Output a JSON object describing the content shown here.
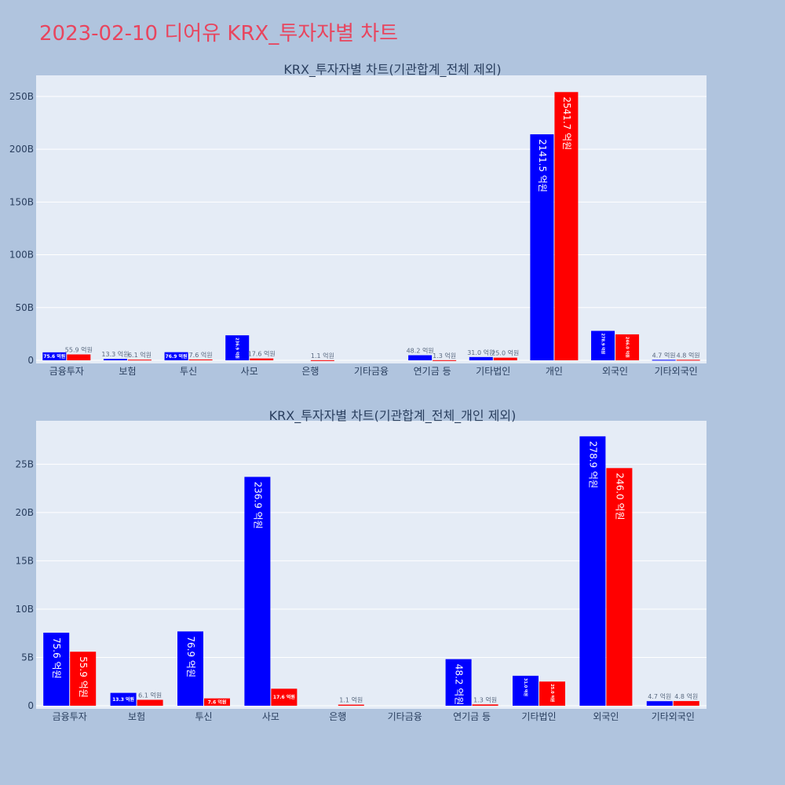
{
  "page": {
    "title": "2023-02-10 디어유 KRX_투자자별 차트"
  },
  "colors": {
    "background": "#b0c4de",
    "plot_background": "#e5ecf6",
    "grid": "#ffffff",
    "series_buy": "#0000ff",
    "series_sell": "#ff0000",
    "title": "#e8455e",
    "text": "#2a3f5f",
    "label_outside": "#5a6a80"
  },
  "chart_data": [
    {
      "type": "bar",
      "title": "KRX_투자자별 차트(기관합계_전체 제외)",
      "categories": [
        "금융투자",
        "보험",
        "투신",
        "사모",
        "은행",
        "기타금융",
        "연기금 등",
        "기타법인",
        "개인",
        "외국인",
        "기타외국인"
      ],
      "ylim": [
        0,
        270
      ],
      "yticks": [
        0,
        50,
        100,
        150,
        200,
        250
      ],
      "ytick_labels": [
        "0",
        "50B",
        "100B",
        "150B",
        "200B",
        "250B"
      ],
      "grid": true,
      "series": [
        {
          "color": "#0000ff",
          "values": [
            7.56,
            1.33,
            7.69,
            23.69,
            0,
            0,
            4.82,
            3.1,
            214.15,
            27.89,
            0.47
          ],
          "labels": [
            "75.6 억원",
            "13.3 억원",
            "76.9 억원",
            "236.9 억원",
            "",
            "",
            "48.2 억원",
            "31.0 억원",
            "2141.5 억원",
            "278.9 억원",
            "4.7 억원"
          ]
        },
        {
          "color": "#ff0000",
          "values": [
            5.59,
            0.61,
            0.76,
            1.76,
            0.11,
            0,
            0.13,
            2.5,
            254.17,
            24.6,
            0.48
          ],
          "labels": [
            "55.9 억원",
            "6.1 억원",
            "7.6 억원",
            "17.6 억원",
            "1.1 억원",
            "",
            "1.3 억원",
            "25.0 억원",
            "2541.7 억원",
            "246.0 억원",
            "4.8 억원"
          ]
        }
      ]
    },
    {
      "type": "bar",
      "title": "KRX_투자자별 차트(기관합계_전체_개인 제외)",
      "categories": [
        "금융투자",
        "보험",
        "투신",
        "사모",
        "은행",
        "기타금융",
        "연기금 등",
        "기타법인",
        "외국인",
        "기타외국인"
      ],
      "ylim": [
        0,
        29.5
      ],
      "yticks": [
        0,
        5,
        10,
        15,
        20,
        25
      ],
      "ytick_labels": [
        "0",
        "5B",
        "10B",
        "15B",
        "20B",
        "25B"
      ],
      "grid": true,
      "series": [
        {
          "color": "#0000ff",
          "values": [
            7.56,
            1.33,
            7.69,
            23.69,
            0,
            0,
            4.82,
            3.1,
            27.89,
            0.47
          ],
          "labels": [
            "75.6 억원",
            "13.3 억원",
            "76.9 억원",
            "236.9 억원",
            "",
            "",
            "48.2 억원",
            "31.0 억원",
            "278.9 억원",
            "4.7 억원"
          ]
        },
        {
          "color": "#ff0000",
          "values": [
            5.59,
            0.61,
            0.76,
            1.76,
            0.11,
            0,
            0.13,
            2.5,
            24.6,
            0.48
          ],
          "labels": [
            "55.9 억원",
            "6.1 억원",
            "7.6 억원",
            "17.6 억원",
            "1.1 억원",
            "",
            "1.3 억원",
            "25.0 억원",
            "246.0 억원",
            "4.8 억원"
          ]
        }
      ]
    }
  ]
}
